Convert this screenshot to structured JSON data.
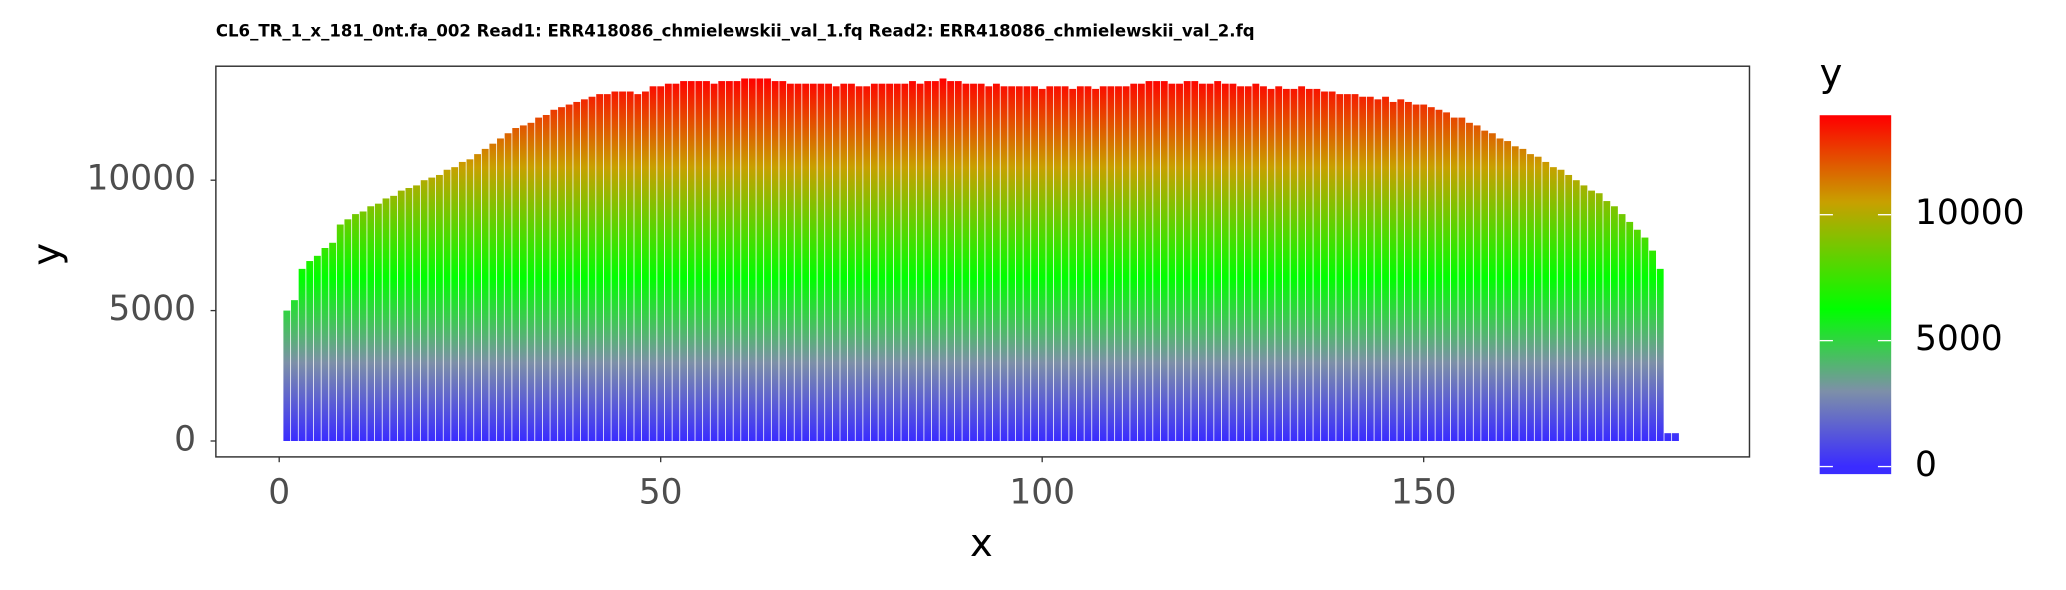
{
  "chart_data": {
    "type": "bar",
    "title": "CL6_TR_1_x_181_0nt.fa_002 Read1: ERR418086_chmielewskii_val_1.fq Read2: ERR418086_chmielewskii_val_2.fq",
    "x_label": "x",
    "y_label": "y",
    "legend_title": "y",
    "x": [
      1,
      2,
      3,
      4,
      5,
      6,
      7,
      8,
      9,
      10,
      11,
      12,
      13,
      14,
      15,
      16,
      17,
      18,
      19,
      20,
      21,
      22,
      23,
      24,
      25,
      26,
      27,
      28,
      29,
      30,
      31,
      32,
      33,
      34,
      35,
      36,
      37,
      38,
      39,
      40,
      41,
      42,
      43,
      44,
      45,
      46,
      47,
      48,
      49,
      50,
      51,
      52,
      53,
      54,
      55,
      56,
      57,
      58,
      59,
      60,
      61,
      62,
      63,
      64,
      65,
      66,
      67,
      68,
      69,
      70,
      71,
      72,
      73,
      74,
      75,
      76,
      77,
      78,
      79,
      80,
      81,
      82,
      83,
      84,
      85,
      86,
      87,
      88,
      89,
      90,
      91,
      92,
      93,
      94,
      95,
      96,
      97,
      98,
      99,
      100,
      101,
      102,
      103,
      104,
      105,
      106,
      107,
      108,
      109,
      110,
      111,
      112,
      113,
      114,
      115,
      116,
      117,
      118,
      119,
      120,
      121,
      122,
      123,
      124,
      125,
      126,
      127,
      128,
      129,
      130,
      131,
      132,
      133,
      134,
      135,
      136,
      137,
      138,
      139,
      140,
      141,
      142,
      143,
      144,
      145,
      146,
      147,
      148,
      149,
      150,
      151,
      152,
      153,
      154,
      155,
      156,
      157,
      158,
      159,
      160,
      161,
      162,
      163,
      164,
      165,
      166,
      167,
      168,
      169,
      170,
      171,
      172,
      173,
      174,
      175,
      176,
      177,
      178,
      179,
      180,
      181,
      182,
      183
    ],
    "values": [
      5000,
      5400,
      6600,
      6900,
      7100,
      7400,
      7600,
      8300,
      8500,
      8700,
      8800,
      9000,
      9100,
      9300,
      9400,
      9600,
      9700,
      9800,
      10000,
      10100,
      10200,
      10400,
      10500,
      10700,
      10800,
      11000,
      11200,
      11400,
      11600,
      11800,
      12000,
      12100,
      12200,
      12400,
      12500,
      12700,
      12800,
      12900,
      13000,
      13100,
      13200,
      13300,
      13300,
      13400,
      13400,
      13400,
      13300,
      13400,
      13600,
      13600,
      13700,
      13700,
      13800,
      13800,
      13800,
      13800,
      13700,
      13800,
      13800,
      13800,
      13900,
      13900,
      13900,
      13900,
      13800,
      13800,
      13700,
      13700,
      13700,
      13700,
      13700,
      13700,
      13600,
      13700,
      13700,
      13600,
      13600,
      13700,
      13700,
      13700,
      13700,
      13700,
      13800,
      13700,
      13800,
      13800,
      13900,
      13800,
      13800,
      13700,
      13700,
      13700,
      13600,
      13700,
      13600,
      13600,
      13600,
      13600,
      13600,
      13500,
      13600,
      13600,
      13600,
      13500,
      13600,
      13600,
      13500,
      13600,
      13600,
      13600,
      13600,
      13700,
      13700,
      13800,
      13800,
      13800,
      13700,
      13700,
      13800,
      13800,
      13700,
      13700,
      13800,
      13700,
      13700,
      13600,
      13600,
      13700,
      13600,
      13500,
      13600,
      13500,
      13500,
      13600,
      13500,
      13500,
      13400,
      13400,
      13300,
      13300,
      13300,
      13200,
      13200,
      13100,
      13200,
      13000,
      13100,
      13000,
      12900,
      12900,
      12800,
      12700,
      12600,
      12400,
      12400,
      12200,
      12100,
      11900,
      11800,
      11600,
      11500,
      11300,
      11200,
      11000,
      10900,
      10700,
      10500,
      10400,
      10200,
      10000,
      9800,
      9600,
      9500,
      9200,
      9000,
      8700,
      8400,
      8100,
      7800,
      7300,
      6600,
      300,
      300
    ],
    "xlim": [
      -8.3,
      192.7
    ],
    "xticks": [
      0,
      50,
      100,
      150
    ],
    "ylim": [
      -610,
      14370
    ],
    "yticks": [
      0,
      5000,
      10000
    ],
    "colorscale": {
      "stops": [
        0,
        3000,
        6250,
        10500,
        13900
      ],
      "colors": [
        "#3a2cff",
        "#7d90a8",
        "#00ff00",
        "#c8a000",
        "#ff0000"
      ]
    },
    "colorlim": [
      -300,
      13950
    ],
    "colorticks": [
      0,
      5000,
      10000
    ],
    "grid": false
  }
}
